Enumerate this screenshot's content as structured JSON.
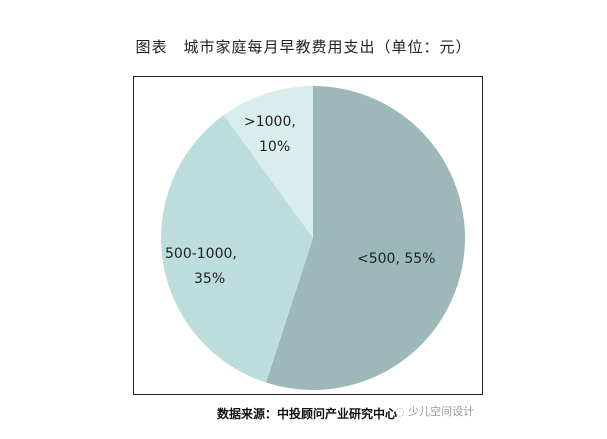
{
  "chart_data": {
    "type": "pie",
    "title": "图表　城市家庭每月早教费用支出（单位：元）",
    "slices": [
      {
        "label": "<500",
        "value": 55,
        "text": "<500, 55%",
        "color": "#9db8b8"
      },
      {
        "label": "500-1000",
        "value": 35,
        "text": [
          "500-1000,",
          "35%"
        ],
        "color": "#bddcdc"
      },
      {
        "label": ">1000",
        "value": 10,
        "text": [
          ">1000,",
          "10%"
        ],
        "color": "#daeded"
      }
    ],
    "start": "top",
    "direction": "clockwise"
  },
  "source": "数据来源：中投顾问产业研究中心",
  "watermark": "少儿空间设计"
}
